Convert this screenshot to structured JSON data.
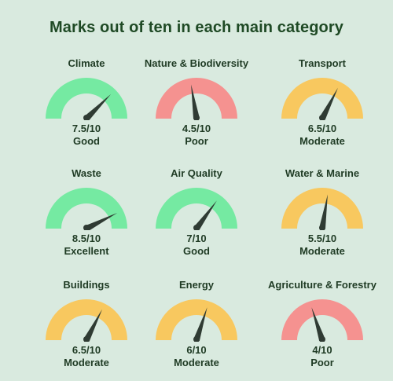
{
  "title": "Marks out of ten in each main category",
  "colors": {
    "background": "#d9eadf",
    "good": "#75eaa2",
    "moderate": "#f8c85f",
    "poor": "#f59290",
    "needle": "#2f3b33",
    "text": "#1f3b24"
  },
  "chart_data": {
    "type": "gauge",
    "title": "Marks out of ten in each main category",
    "max": 10,
    "items": [
      {
        "category": "Climate",
        "score_text": "7.5/10",
        "value": 7.5,
        "rating": "Good",
        "color": "#75eaa2"
      },
      {
        "category": "Nature & Biodiversity",
        "score_text": "4.5/10",
        "value": 4.5,
        "rating": "Poor",
        "color": "#f59290"
      },
      {
        "category": "Transport",
        "score_text": "6.5/10",
        "value": 6.5,
        "rating": "Moderate",
        "color": "#f8c85f"
      },
      {
        "category": "Waste",
        "score_text": "8.5/10",
        "value": 8.5,
        "rating": "Excellent",
        "color": "#75eaa2"
      },
      {
        "category": "Air Quality",
        "score_text": "7/10",
        "value": 7,
        "rating": "Good",
        "color": "#75eaa2"
      },
      {
        "category": "Water & Marine",
        "score_text": "5.5/10",
        "value": 5.5,
        "rating": "Moderate",
        "color": "#f8c85f"
      },
      {
        "category": "Buildings",
        "score_text": "6.5/10",
        "value": 6.5,
        "rating": "Moderate",
        "color": "#f8c85f"
      },
      {
        "category": "Energy",
        "score_text": "6/10",
        "value": 6,
        "rating": "Moderate",
        "color": "#f8c85f"
      },
      {
        "category": "Agriculture & Forestry",
        "score_text": "4/10",
        "value": 4,
        "rating": "Poor",
        "color": "#f59290"
      }
    ]
  }
}
